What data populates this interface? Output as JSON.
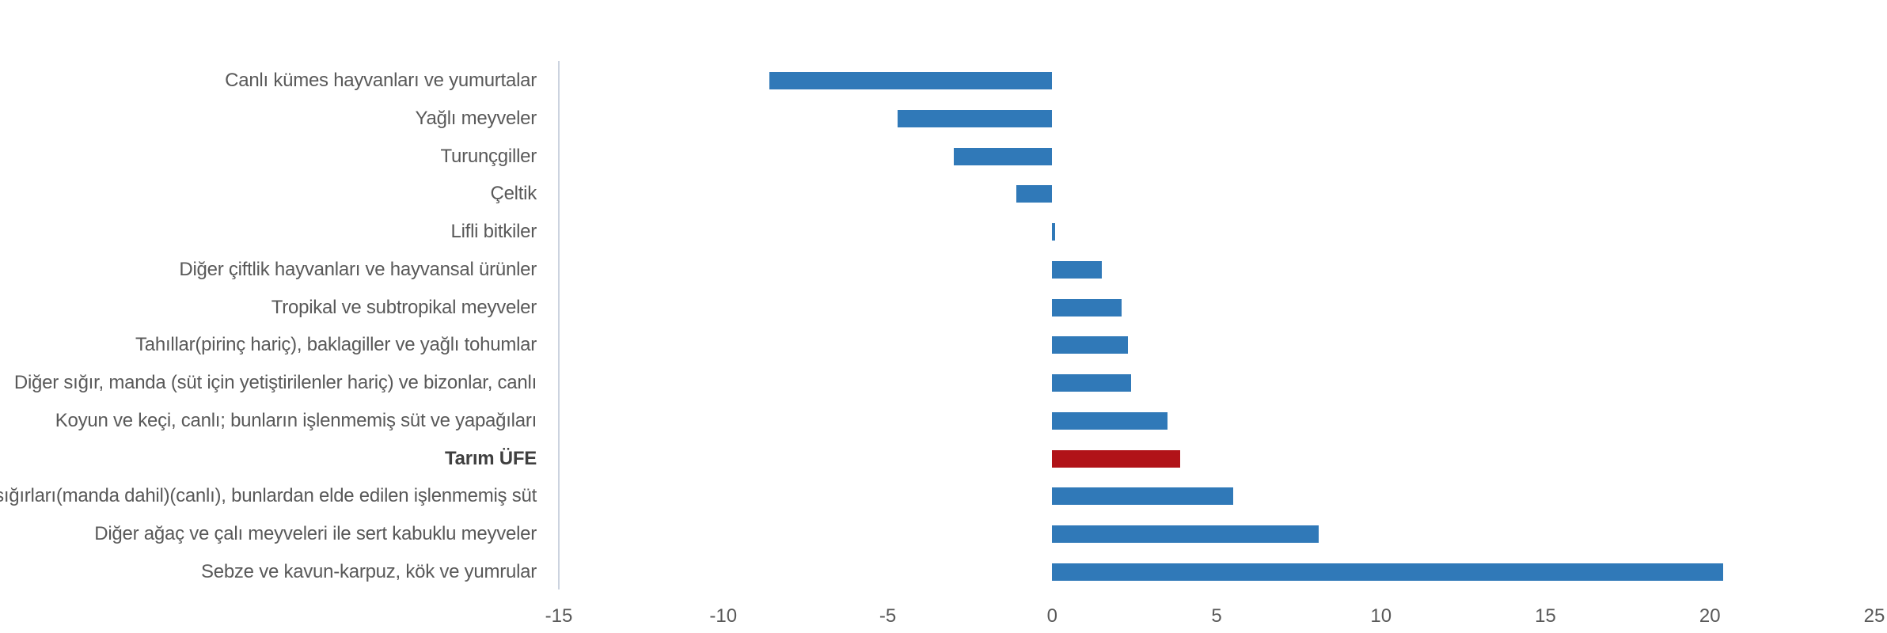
{
  "chart_data": {
    "type": "bar",
    "orientation": "horizontal",
    "title": "",
    "categories": [
      "Canlı kümes hayvanları ve yumurtalar",
      "Yağlı meyveler",
      "Turunçgiller",
      "Çeltik",
      "Lifli bitkiler",
      "Diğer çiftlik hayvanları ve hayvansal ürünler",
      "Tropikal ve subtropikal meyveler",
      "Tahıllar(pirinç hariç), baklagiller ve yağlı tohumlar",
      "Diğer sığır, manda (süt için yetiştirilenler hariç) ve bizonlar, canlı",
      "Koyun ve keçi, canlı; bunların işlenmemiş süt ve yapağıları",
      "Tarım ÜFE",
      "Süt sığırları(manda dahil)(canlı), bunlardan elde edilen işlenmemiş süt",
      "Diğer ağaç ve çalı meyveleri ile sert kabuklu meyveler",
      "Sebze ve kavun-karpuz, kök ve yumrular"
    ],
    "values": [
      -8.6,
      -4.7,
      -3.0,
      -1.1,
      0.1,
      1.5,
      2.1,
      2.3,
      2.4,
      3.5,
      3.9,
      5.5,
      8.1,
      20.4
    ],
    "highlight_index": 10,
    "highlight_category": "Tarım ÜFE",
    "bar_color": "#3079b8",
    "highlight_bar_color": "#b11318",
    "x_ticks": [
      -15,
      -10,
      -5,
      0,
      5,
      10,
      15,
      20,
      25
    ],
    "xlim": [
      -15,
      25
    ],
    "xlabel": "",
    "ylabel": "",
    "grid": false,
    "legend": false,
    "background_color": "#ffffff",
    "axis_line_color": "#ccd3df",
    "category_label_color": "#595959",
    "highlight_label_color": "#3f3f3f",
    "tick_label_color": "#595959"
  }
}
